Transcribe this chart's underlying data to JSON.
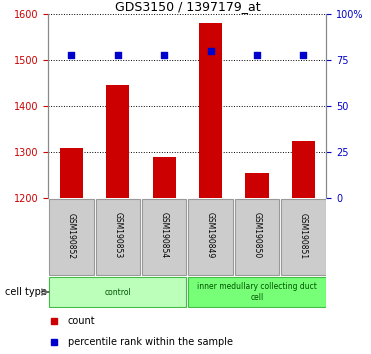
{
  "title": "GDS3150 / 1397179_at",
  "samples": [
    "GSM190852",
    "GSM190853",
    "GSM190854",
    "GSM190849",
    "GSM190850",
    "GSM190851"
  ],
  "counts": [
    1310,
    1445,
    1290,
    1580,
    1255,
    1325
  ],
  "percentiles": [
    78,
    78,
    78,
    80,
    78,
    78
  ],
  "ylim_left": [
    1200,
    1600
  ],
  "ylim_right": [
    0,
    100
  ],
  "yticks_left": [
    1200,
    1300,
    1400,
    1500,
    1600
  ],
  "yticks_right": [
    0,
    25,
    50,
    75,
    100
  ],
  "ytick_labels_right": [
    "0",
    "25",
    "50",
    "75",
    "100%"
  ],
  "bar_color": "#cc0000",
  "dot_color": "#0000cc",
  "bar_width": 0.5,
  "cell_types": [
    {
      "label": "control",
      "start": 0,
      "end": 3,
      "color": "#bbffbb"
    },
    {
      "label": "inner medullary collecting duct\ncell",
      "start": 3,
      "end": 6,
      "color": "#77ff77"
    }
  ],
  "cell_type_label": "cell type",
  "legend_count_label": "count",
  "legend_percentile_label": "percentile rank within the sample",
  "grid_color": "#000000",
  "bg_color": "#ffffff",
  "sample_box_color": "#cccccc",
  "left_tick_color": "#cc0000",
  "right_tick_color": "#0000cc"
}
